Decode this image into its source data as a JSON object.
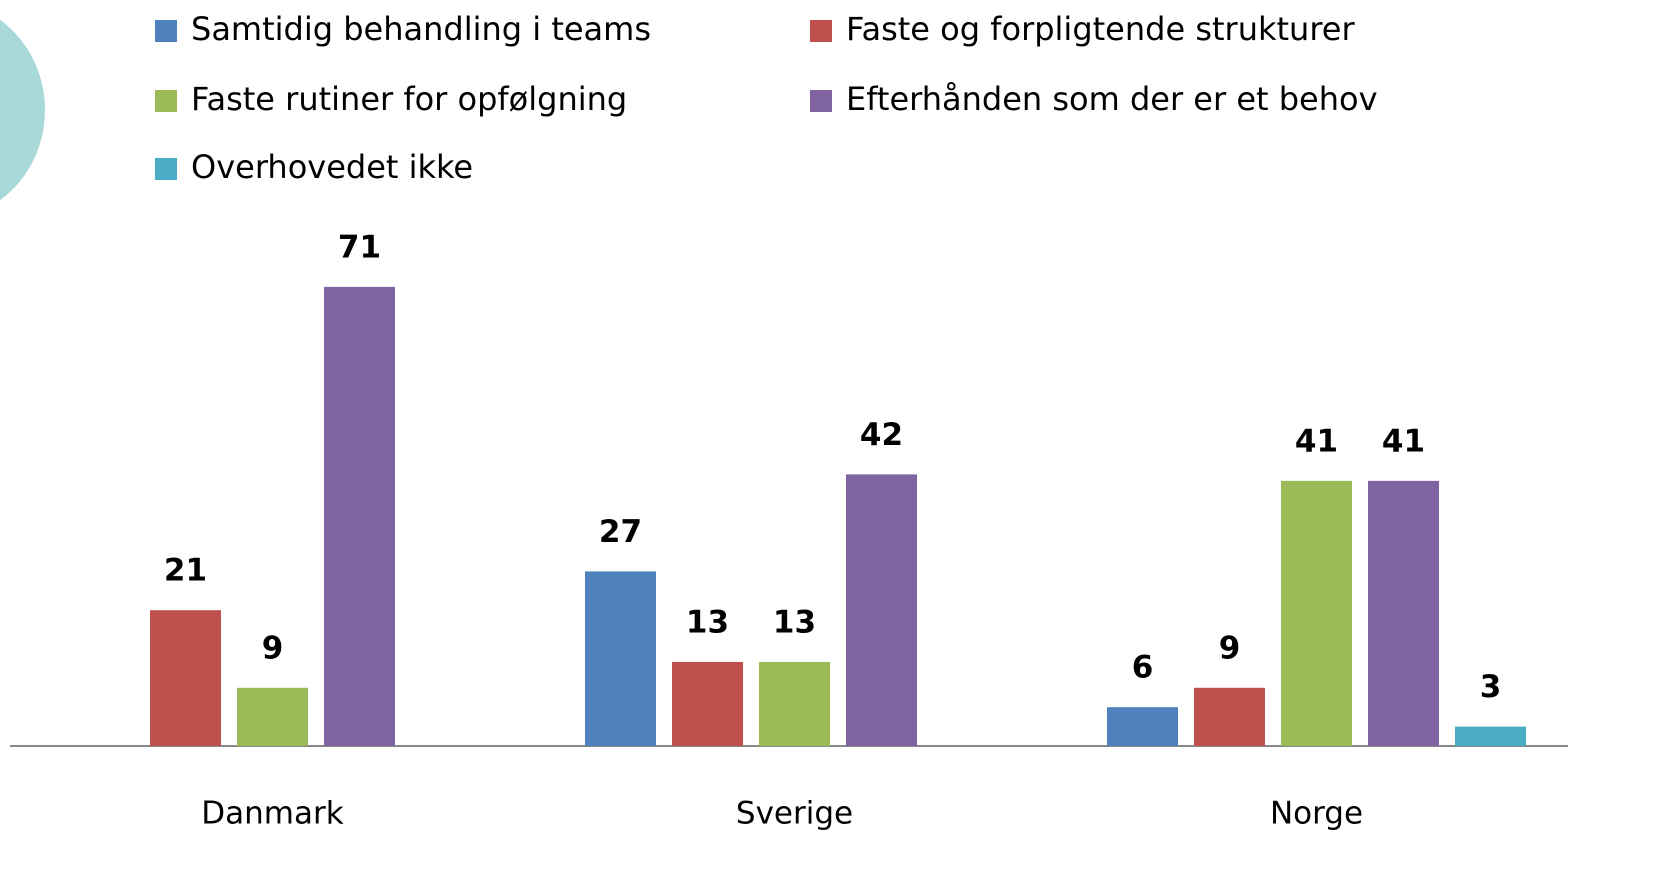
{
  "chart_data": {
    "type": "bar",
    "categories": [
      "Danmark",
      "Sverige",
      "Norge"
    ],
    "series": [
      {
        "name": "Samtidig behandling i teams",
        "color": "#4f81bd",
        "values": [
          null,
          27,
          6
        ]
      },
      {
        "name": "Faste og forpligtende strukturer",
        "color": "#c0504d",
        "values": [
          21,
          13,
          9
        ]
      },
      {
        "name": "Faste rutiner for opfølgning",
        "color": "#9bbb59",
        "values": [
          9,
          13,
          41
        ]
      },
      {
        "name": "Efterhånden som der er et behov",
        "color": "#8064a2",
        "values": [
          71,
          42,
          41
        ]
      },
      {
        "name": "Overhovedet ikke",
        "color": "#4bacc6",
        "values": [
          null,
          null,
          3
        ]
      }
    ],
    "ylim": [
      0,
      75
    ],
    "legend": "top"
  }
}
